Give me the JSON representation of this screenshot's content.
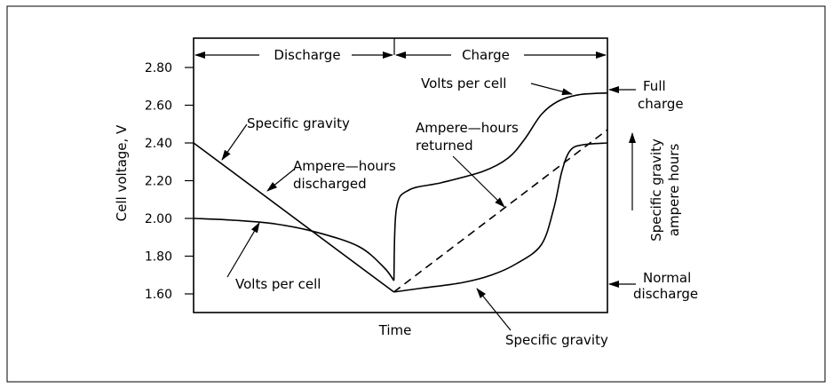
{
  "chart_data": {
    "type": "line",
    "title": "",
    "xlabel": "Time",
    "ylabel": "Cell voltage, V",
    "ylim": [
      1.56,
      2.9
    ],
    "yticks": [
      "1.60",
      "1.80",
      "2.00",
      "2.20",
      "2.40",
      "2.60",
      "2.80"
    ],
    "ytick_values": [
      1.6,
      1.8,
      2.0,
      2.2,
      2.4,
      2.6,
      2.8
    ],
    "xlim": [
      0,
      100
    ],
    "phases": [
      {
        "label": "Discharge",
        "start": 0,
        "end": 48.4
      },
      {
        "label": "Charge",
        "start": 48.4,
        "end": 100
      }
    ],
    "secondary_axis_label": [
      "Specific gravity",
      "ampere hours"
    ],
    "series": [
      {
        "name": "Volts per cell (discharge)",
        "x": [
          0,
          10,
          20,
          30,
          40,
          46,
          48.4
        ],
        "y": [
          2.0,
          1.99,
          1.97,
          1.925,
          1.85,
          1.74,
          1.67
        ]
      },
      {
        "name": "Specific gravity (discharge)",
        "x": [
          0,
          48.4
        ],
        "y": [
          2.4,
          1.61
        ]
      },
      {
        "name": "Volts per cell (charge)",
        "x": [
          48.4,
          49,
          52,
          60,
          70,
          76,
          80,
          84,
          88,
          93,
          100
        ],
        "y": [
          1.67,
          2.05,
          2.15,
          2.19,
          2.25,
          2.32,
          2.42,
          2.55,
          2.62,
          2.655,
          2.665
        ]
      },
      {
        "name": "Ampere-hours returned",
        "style": "dashed",
        "x": [
          48.4,
          100
        ],
        "y": [
          1.61,
          2.47
        ]
      },
      {
        "name": "Specific gravity (charge)",
        "x": [
          48.4,
          55,
          65,
          72,
          78,
          84,
          87,
          89,
          91,
          94,
          100
        ],
        "y": [
          1.61,
          1.63,
          1.66,
          1.7,
          1.76,
          1.86,
          2.05,
          2.25,
          2.36,
          2.39,
          2.4
        ]
      }
    ],
    "annotations": {
      "discharge_label": "Discharge",
      "charge_label": "Charge",
      "volts_per_cell_top": "Volts per cell",
      "full_charge": [
        "Full",
        "charge"
      ],
      "specific_gravity_left": "Specific gravity",
      "ampere_hours_discharged": [
        "Ampere—hours",
        "discharged"
      ],
      "ampere_hours_returned": [
        "Ampere—hours",
        "returned"
      ],
      "volts_per_cell_bottom": "Volts per cell",
      "normal_discharge": [
        "Normal",
        "discharge"
      ],
      "specific_gravity_bottom": "Specific gravity"
    }
  }
}
